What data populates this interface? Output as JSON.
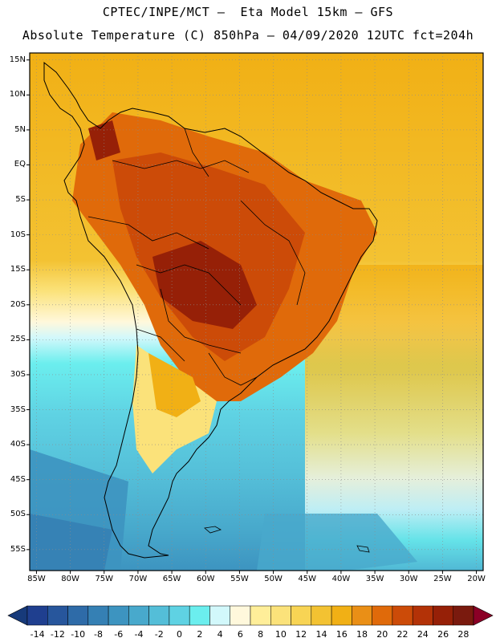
{
  "title_line1": "CPTEC/INPE/MCT –  Eta Model 15km – GFS",
  "title_line2": "Absolute Temperature (C) 850hPa – 04/09/2020 12UTC fct=204h",
  "map": {
    "lat_labels": [
      "15N",
      "10N",
      "5N",
      "EQ",
      "5S",
      "10S",
      "15S",
      "20S",
      "25S",
      "30S",
      "35S",
      "40S",
      "45S",
      "50S",
      "55S"
    ],
    "lon_labels": [
      "85W",
      "80W",
      "75W",
      "70W",
      "65W",
      "60W",
      "55W",
      "50W",
      "45W",
      "40W",
      "35W",
      "30W",
      "25W",
      "20W"
    ],
    "lat_values": [
      15,
      10,
      5,
      0,
      -5,
      -10,
      -15,
      -20,
      -25,
      -30,
      -35,
      -40,
      -45,
      -50,
      -55
    ],
    "lon_values": [
      -85,
      -80,
      -75,
      -70,
      -65,
      -60,
      -55,
      -50,
      -45,
      -40,
      -35,
      -30,
      -25,
      -20
    ],
    "lat_range": [
      -58,
      16
    ],
    "lon_range": [
      -86,
      -19
    ],
    "ocean_temp_gradient": "warm north (~18-20C) to cold south (~-4C)",
    "colors": {
      "coast": "#000000",
      "grid": "#8c8c8c",
      "frame": "#000000"
    }
  },
  "colorbar": {
    "labels": [
      "-14",
      "-12",
      "-10",
      "-8",
      "-6",
      "-4",
      "-2",
      "0",
      "2",
      "4",
      "6",
      "8",
      "10",
      "12",
      "14",
      "16",
      "18",
      "20",
      "22",
      "24",
      "26",
      "28"
    ],
    "colors": [
      "#1f3f8f",
      "#27569c",
      "#2e6ba8",
      "#3580b4",
      "#3d94c0",
      "#48a9cc",
      "#54bed8",
      "#5fd2e3",
      "#6beeee",
      "#d2f8fb",
      "#fff8dc",
      "#ffee99",
      "#fbe27a",
      "#f8d454",
      "#f3c232",
      "#f1b015",
      "#ea8f16",
      "#e06a0a",
      "#cc4b08",
      "#b33207",
      "#962007",
      "#7a1a0e"
    ],
    "low_arrow_color": "#173a7a",
    "high_arrow_color": "#8b0026"
  }
}
